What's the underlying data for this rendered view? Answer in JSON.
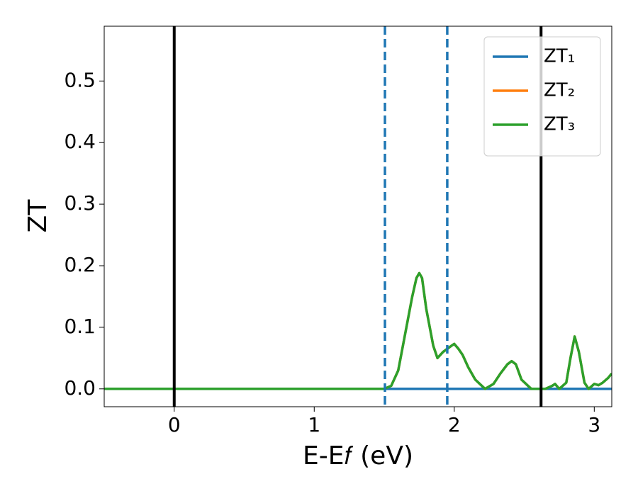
{
  "chart_data": {
    "type": "line",
    "xlabel": "E-E𝑓 (eV)",
    "ylabel": "ZT",
    "x": [
      -0.5,
      1.0,
      1.5,
      1.55,
      1.6,
      1.65,
      1.7,
      1.73,
      1.75,
      1.77,
      1.8,
      1.85,
      1.88,
      1.92,
      1.95,
      1.98,
      2.0,
      2.03,
      2.06,
      2.1,
      2.15,
      2.22,
      2.28,
      2.33,
      2.38,
      2.41,
      2.44,
      2.48,
      2.55,
      2.65,
      2.7,
      2.72,
      2.75,
      2.8,
      2.83,
      2.86,
      2.89,
      2.93,
      2.96,
      3.0,
      3.03,
      3.06,
      3.1,
      3.125
    ],
    "series": [
      {
        "name": "ZT₁",
        "color": "#1f77b4",
        "values": [
          0,
          0,
          0,
          0,
          0,
          0,
          0,
          0,
          0,
          0,
          0,
          0,
          0,
          0,
          0,
          0,
          0,
          0,
          0,
          0,
          0,
          0,
          0,
          0,
          0,
          0,
          0,
          0,
          0,
          0,
          0,
          0,
          0,
          0,
          0,
          0,
          0,
          0,
          0,
          0,
          0,
          0,
          0,
          0
        ]
      },
      {
        "name": "ZT₂",
        "color": "#ff7f0e",
        "values": [
          0,
          0,
          0,
          0.005,
          0.03,
          0.09,
          0.15,
          0.18,
          0.188,
          0.18,
          0.13,
          0.07,
          0.05,
          0.06,
          0.065,
          0.07,
          0.073,
          0.065,
          0.055,
          0.035,
          0.015,
          0,
          0.008,
          0.025,
          0.04,
          0.045,
          0.04,
          0.015,
          0,
          0,
          0.005,
          0.008,
          0,
          0.01,
          0.05,
          0.085,
          0.06,
          0.01,
          0,
          0.008,
          0.006,
          0.01,
          0.018,
          0.025
        ]
      },
      {
        "name": "ZT₃",
        "color": "#2ca02c",
        "values": [
          0,
          0,
          0,
          0.005,
          0.03,
          0.09,
          0.15,
          0.18,
          0.188,
          0.18,
          0.13,
          0.07,
          0.05,
          0.06,
          0.065,
          0.07,
          0.073,
          0.065,
          0.055,
          0.035,
          0.015,
          0,
          0.008,
          0.025,
          0.04,
          0.045,
          0.04,
          0.015,
          0,
          0,
          0.005,
          0.008,
          0,
          0.01,
          0.05,
          0.085,
          0.06,
          0.01,
          0,
          0.008,
          0.006,
          0.01,
          0.018,
          0.025
        ]
      }
    ],
    "vlines": [
      {
        "x": 0,
        "color": "#000000",
        "style": "solid"
      },
      {
        "x": 2.62,
        "color": "#000000",
        "style": "solid"
      },
      {
        "x": 1.505,
        "color": "#1f77b4",
        "style": "dashed"
      },
      {
        "x": 1.95,
        "color": "#1f77b4",
        "style": "dashed"
      }
    ],
    "xlim": [
      -0.5,
      3.125
    ],
    "ylim": [
      -0.029,
      0.589
    ],
    "xticks": [
      0,
      1,
      2,
      3
    ],
    "yticks": [
      {
        "value": 0,
        "label": "0.0"
      },
      0.1,
      0.2,
      0.3,
      0.4,
      0.5
    ],
    "legend": "upper right"
  }
}
